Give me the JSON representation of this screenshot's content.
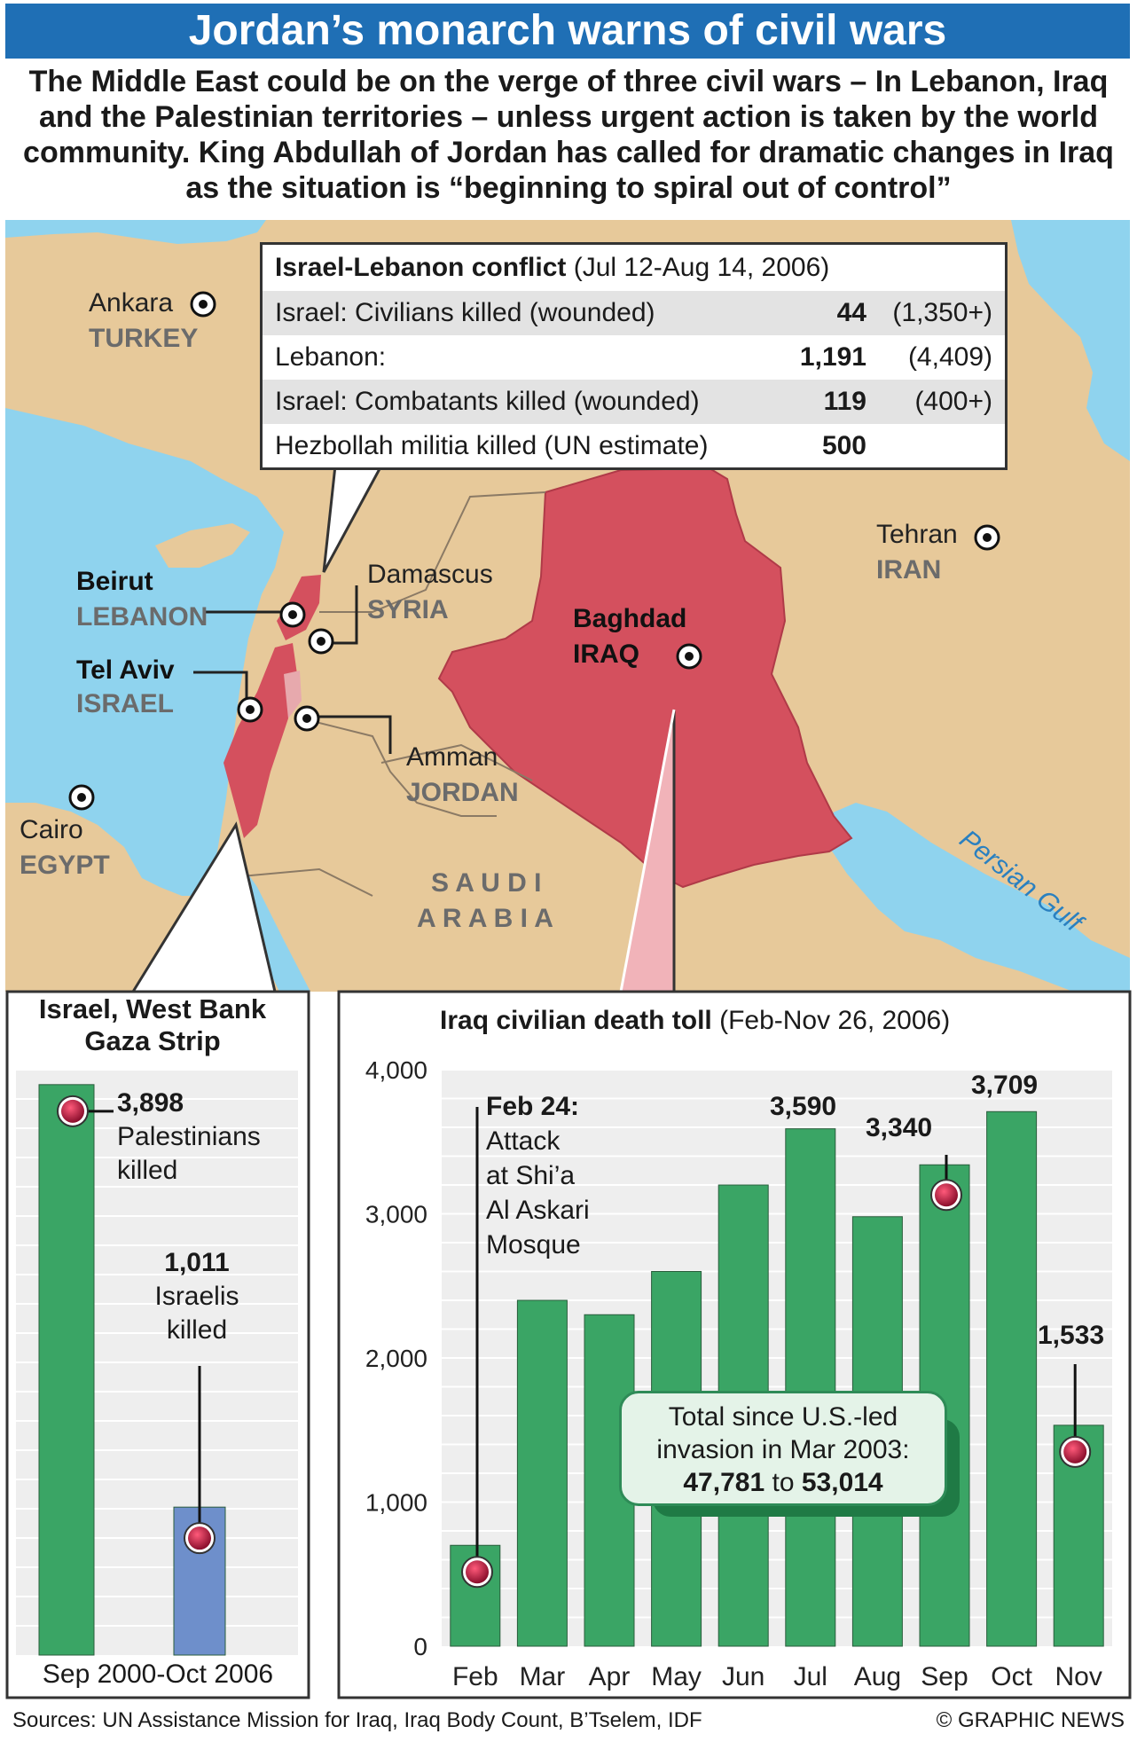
{
  "title": "Jordan’s monarch warns of civil wars",
  "intro": "The Middle East could be on the verge of three civil wars – In Lebanon, Iraq and the Palestinian territories – unless urgent action is taken by the world community. King Abdullah of Jordan has called for dramatic changes in Iraq as the situation is “beginning to spiral out of control”",
  "map": {
    "colors": {
      "sea": "#8fd3ee",
      "land": "#e7c99a",
      "highlight": "#d4505e"
    },
    "labels": {
      "ankara": "Ankara",
      "turkey": "TURKEY",
      "tehran": "Tehran",
      "iran": "IRAN",
      "beirut": "Beirut",
      "lebanon": "LEBANON",
      "damascus": "Damascus",
      "syria": "SYRIA",
      "baghdad": "Baghdad",
      "iraq": "IRAQ",
      "telaviv": "Tel Aviv",
      "israel": "ISRAEL",
      "amman": "Amman",
      "jordan": "JORDAN",
      "cairo": "Cairo",
      "egypt": "EGYPT",
      "saudi1": "S A U D I",
      "saudi2": "A R A B I A",
      "gulf": "Persian Gulf"
    }
  },
  "lebanon_box": {
    "title": "Israel-Lebanon conflict",
    "dates": "(Jul 12-Aug 14, 2006)",
    "rows": [
      {
        "label": "Israel: Civilians killed (wounded)",
        "killed": "44",
        "wounded": "(1,350+)"
      },
      {
        "label": "Lebanon:",
        "killed": "1,191",
        "wounded": "(4,409)"
      },
      {
        "label": "Israel: Combatants killed (wounded)",
        "killed": "119",
        "wounded": "(400+)"
      },
      {
        "label": "Hezbollah militia killed (UN estimate)",
        "killed": "500",
        "wounded": ""
      }
    ]
  },
  "gaza_panel": {
    "title_line1": "Israel, West Bank",
    "title_line2": "Gaza Strip",
    "period": "Sep 2000-Oct 2006",
    "palestinians_value": "3,898",
    "palestinians_line1": "Palestinians",
    "palestinians_line2": "killed",
    "israelis_value": "1,011",
    "israelis_line1": "Israelis",
    "israelis_line2": "killed"
  },
  "iraq_panel": {
    "title": "Iraq civilian death toll",
    "dates": "(Feb-Nov 26, 2006)",
    "note_title": "Feb 24:",
    "note_lines": [
      "Attack",
      "at Shi’a",
      "Al Askari",
      "Mosque"
    ],
    "total_line1": "Total since U.S.-led",
    "total_line2": "invasion in Mar 2003:",
    "total_low": "47,781",
    "total_to": "to",
    "total_high": "53,014",
    "value_labels": {
      "jul": "3,590",
      "sep": "3,340",
      "oct": "3,709",
      "nov": "1,533"
    }
  },
  "chart_data": [
    {
      "type": "bar",
      "title": "Israel, West Bank Gaza Strip",
      "categories": [
        "Palestinians killed",
        "Israelis killed"
      ],
      "values": [
        3898,
        1011
      ],
      "xlabel": "Sep 2000-Oct 2006",
      "ylim": [
        0,
        4000
      ],
      "colors": [
        "#3aa565",
        "#6e8fcb"
      ],
      "grid": true
    },
    {
      "type": "bar",
      "title": "Iraq civilian death toll (Feb-Nov 26, 2006)",
      "categories": [
        "Feb",
        "Mar",
        "Apr",
        "May",
        "Jun",
        "Jul",
        "Aug",
        "Sep",
        "Oct",
        "Nov"
      ],
      "values": [
        700,
        2400,
        2300,
        2600,
        3200,
        3590,
        2980,
        3340,
        3709,
        1533
      ],
      "ylim": [
        0,
        4000
      ],
      "yticks": [
        "0",
        "1,000",
        "2,000",
        "3,000",
        "4,000"
      ],
      "color": "#3aa565",
      "grid": true
    }
  ],
  "footer": {
    "sources": "Sources: UN Assistance Mission for Iraq, Iraq Body Count, B’Tselem, IDF",
    "credit": "© GRAPHIC NEWS"
  }
}
